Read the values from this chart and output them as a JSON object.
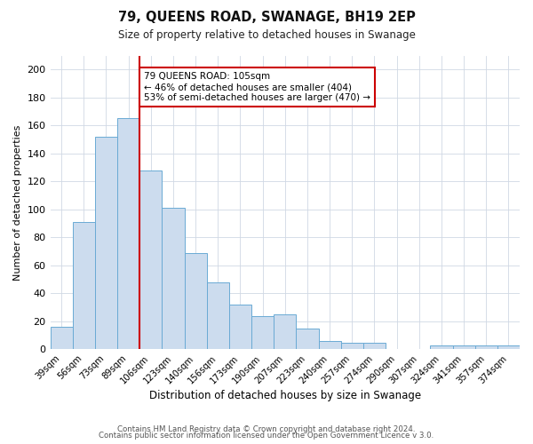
{
  "title": "79, QUEENS ROAD, SWANAGE, BH19 2EP",
  "subtitle": "Size of property relative to detached houses in Swanage",
  "xlabel": "Distribution of detached houses by size in Swanage",
  "ylabel": "Number of detached properties",
  "bar_labels": [
    "39sqm",
    "56sqm",
    "73sqm",
    "89sqm",
    "106sqm",
    "123sqm",
    "140sqm",
    "156sqm",
    "173sqm",
    "190sqm",
    "207sqm",
    "223sqm",
    "240sqm",
    "257sqm",
    "274sqm",
    "290sqm",
    "307sqm",
    "324sqm",
    "341sqm",
    "357sqm",
    "374sqm"
  ],
  "bar_values": [
    16,
    91,
    152,
    165,
    128,
    101,
    69,
    48,
    32,
    24,
    25,
    15,
    6,
    5,
    5,
    0,
    0,
    3,
    3,
    3,
    3
  ],
  "bar_color": "#ccdcee",
  "bar_edgecolor": "#6aaad4",
  "vline_color": "#cc0000",
  "vline_bar_index": 4,
  "annotation_line1": "79 QUEENS ROAD: 105sqm",
  "annotation_line2": "← 46% of detached houses are smaller (404)",
  "annotation_line3": "53% of semi-detached houses are larger (470) →",
  "annotation_box_edgecolor": "#cc0000",
  "annotation_box_facecolor": "#ffffff",
  "ylim": [
    0,
    210
  ],
  "yticks": [
    0,
    20,
    40,
    60,
    80,
    100,
    120,
    140,
    160,
    180,
    200
  ],
  "footer1": "Contains HM Land Registry data © Crown copyright and database right 2024.",
  "footer2": "Contains public sector information licensed under the Open Government Licence v 3.0.",
  "background_color": "#ffffff",
  "grid_color": "#d0d8e4"
}
